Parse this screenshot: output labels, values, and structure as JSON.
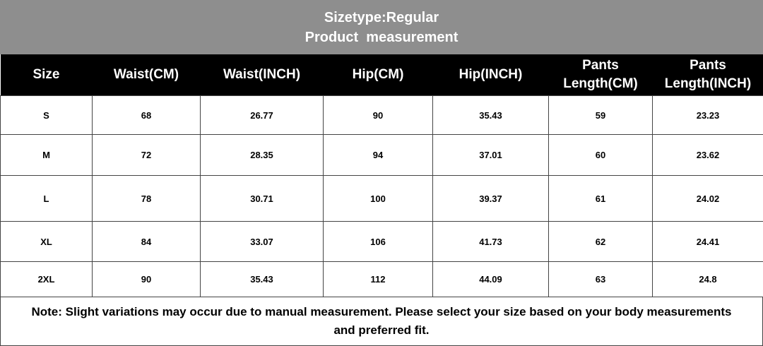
{
  "header": {
    "title": "Sizetype:Regular",
    "subtitle": "Product  measurement"
  },
  "table": {
    "columns": [
      "Size",
      "Waist(CM)",
      "Waist(INCH)",
      "Hip(CM)",
      "Hip(INCH)",
      "Pants Length(CM)",
      "Pants Length(INCH)"
    ],
    "rows": [
      [
        "S",
        "68",
        "26.77",
        "90",
        "35.43",
        "59",
        "23.23"
      ],
      [
        "M",
        "72",
        "28.35",
        "94",
        "37.01",
        "60",
        "23.62"
      ],
      [
        "L",
        "78",
        "30.71",
        "100",
        "39.37",
        "61",
        "24.02"
      ],
      [
        "XL",
        "84",
        "33.07",
        "106",
        "41.73",
        "62",
        "24.41"
      ],
      [
        "2XL",
        "90",
        "35.43",
        "112",
        "44.09",
        "63",
        "24.8"
      ]
    ]
  },
  "note": "Note: Slight variations may occur due to manual measurement. Please select your size based on your body measurements and preferred fit."
}
